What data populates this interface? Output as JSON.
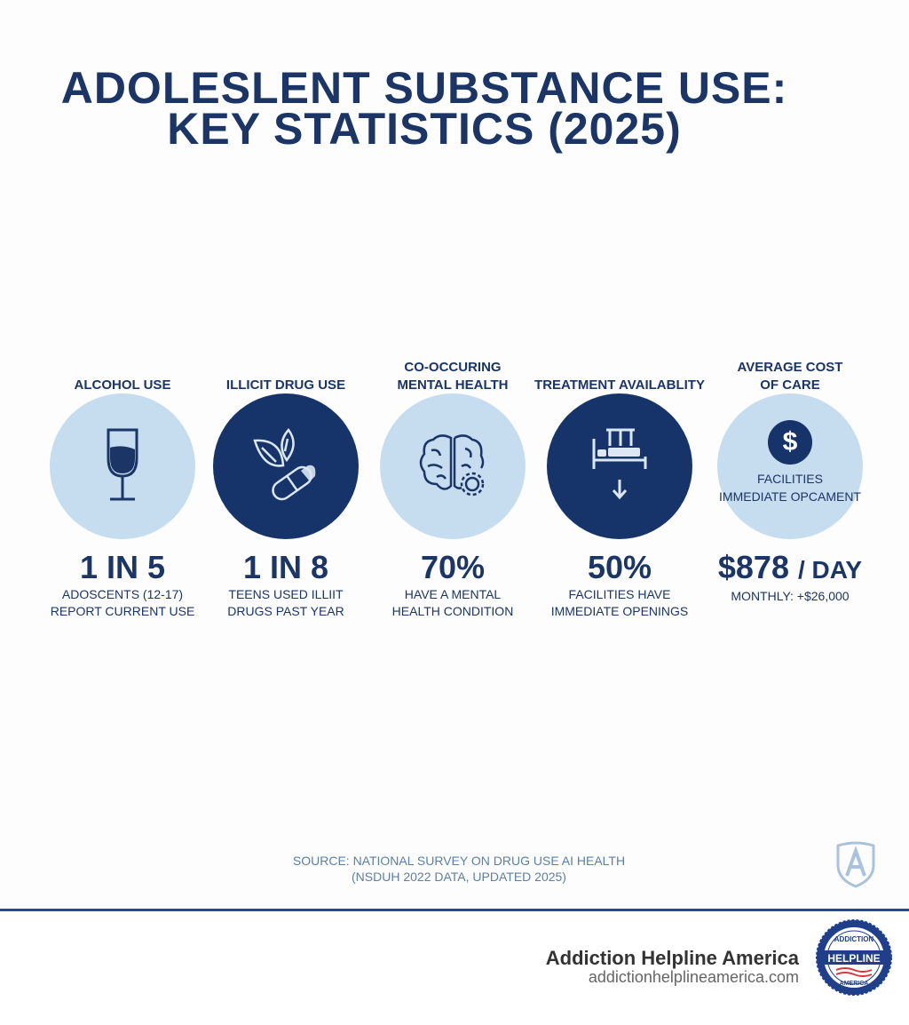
{
  "title": {
    "line1": "ADOLESLENT SUBSTANCE USE:",
    "line2": "KEY STATISTICS (2025)"
  },
  "stats": [
    {
      "heading": [
        "ALCOHOL USE"
      ],
      "icon": "wine-glass-icon",
      "style": "light",
      "value": "1 IN 5",
      "desc": [
        "ADOSCENTS (12-17)",
        "REPORT CURRENT USE"
      ]
    },
    {
      "heading": [
        "ILLICIT DRUG USE"
      ],
      "icon": "leaf-pill-icon",
      "style": "dark",
      "value": "1 IN 8",
      "desc": [
        "TEENS USED ILLIIT",
        "DRUGS PAST YEAR"
      ]
    },
    {
      "heading": [
        "CO-OCCURING",
        "MENTAL HEALTH"
      ],
      "icon": "brain-gear-icon",
      "style": "light",
      "value": "70%",
      "desc": [
        "HAVE A MENTAL",
        "HEALTH CONDITION"
      ]
    },
    {
      "heading": [
        "TREATMENT AVAILABLITY"
      ],
      "icon": "bed-arrow-icon",
      "style": "dark",
      "value": "50%",
      "desc": [
        "FACILITIES HAVE",
        "IMMEDIATE OPENINGS"
      ]
    },
    {
      "heading": [
        "AVERAGE COST",
        "OF CARE"
      ],
      "icon": "dollar-icon",
      "style": "light",
      "value": "$878",
      "unit": "/ DAY",
      "circle_text": [
        "FACILITIES",
        "IMMEDIATE OPCAMENT"
      ],
      "desc": [
        "MONTHLY: +$26,000"
      ]
    }
  ],
  "source": {
    "line1": "SOURCE: NATIONAL SURVEY ON DRUG USE AI HEALTH",
    "line2": "(NSDUH 2022 DATA, UPDATED 2025)"
  },
  "footer": {
    "brand": "Addiction Helpline America",
    "url": "addictionhelplineamerica.com",
    "badge": {
      "top": "ADDICTION",
      "middle": "HELPLINE",
      "bottom": "AMERICA"
    }
  },
  "colors": {
    "navy": "#1a3566",
    "light_circle": "#c6dcef",
    "dark_circle": "#163469",
    "source": "#5b7fa6",
    "rule": "#2a47a0"
  }
}
